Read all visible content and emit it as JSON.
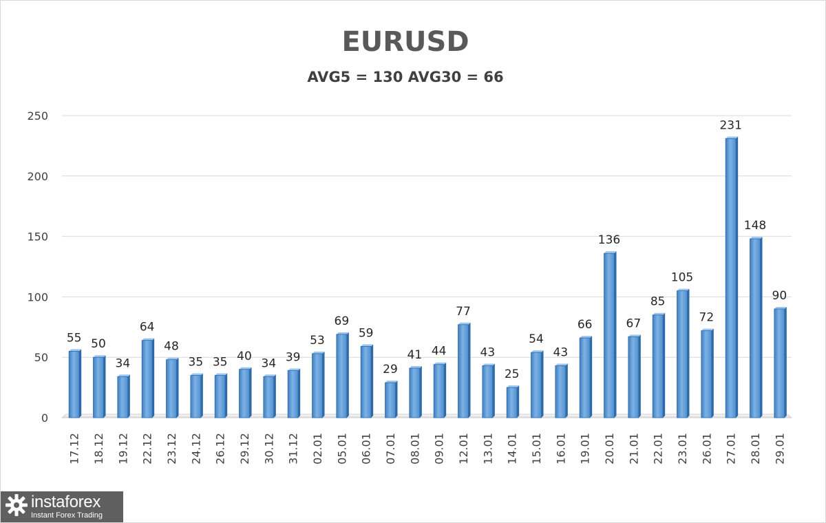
{
  "chart_data": {
    "type": "bar",
    "title": "EURUSD",
    "subtitle": "AVG5 = 130 AVG30 = 66",
    "categories": [
      "17.12",
      "18.12",
      "19.12",
      "22.12",
      "23.12",
      "24.12",
      "26.12",
      "29.12",
      "30.12",
      "31.12",
      "02.01",
      "05.01",
      "06.01",
      "07.01",
      "08.01",
      "09.01",
      "12.01",
      "13.01",
      "14.01",
      "15.01",
      "16.01",
      "19.01",
      "20.01",
      "21.01",
      "22.01",
      "23.01",
      "26.01",
      "27.01",
      "28.01",
      "29.01"
    ],
    "values": [
      55,
      50,
      34,
      64,
      48,
      35,
      35,
      40,
      34,
      39,
      53,
      69,
      59,
      29,
      41,
      44,
      77,
      43,
      25,
      54,
      43,
      66,
      136,
      67,
      85,
      105,
      72,
      231,
      148,
      90
    ],
    "yticks": [
      0,
      50,
      100,
      150,
      200,
      250
    ],
    "ylim": [
      0,
      250
    ],
    "grid": true,
    "data_labels": true,
    "bar_color": "#5b9bd5",
    "xlabel": "",
    "ylabel": ""
  },
  "logo": {
    "name": "instaforex",
    "tagline": "Instant Forex Trading",
    "icon": "gear-logo-icon"
  }
}
